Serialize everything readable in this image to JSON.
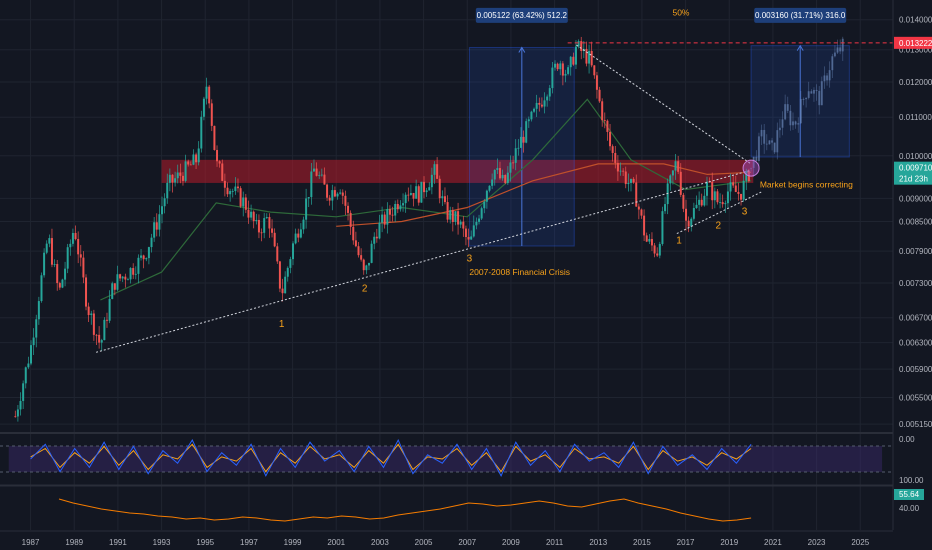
{
  "chart_data": {
    "type": "candlestick",
    "price_axis": {
      "ticks": [
        "0.014000",
        "0.013000",
        "0.012000",
        "0.011000",
        "0.010000",
        "0.009000",
        "0.008500",
        "0.007900",
        "0.007300",
        "0.006700",
        "0.006300",
        "0.005900",
        "0.005500",
        "0.005150"
      ],
      "current_price_label": "0.009710",
      "countdown_label": "21d 23h",
      "target_label": "0.013222",
      "scale": "log",
      "range": [
        0.00505,
        0.0147
      ]
    },
    "time_axis": {
      "ticks": [
        "1987",
        "1989",
        "1991",
        "1993",
        "1995",
        "1997",
        "1999",
        "2001",
        "2003",
        "2005",
        "2007",
        "2009",
        "2011",
        "2013",
        "2015",
        "2017",
        "2019",
        "2021",
        "2023",
        "2025"
      ],
      "range": [
        1985.6,
        2026.5
      ]
    },
    "price_series": [
      {
        "x": 1986.3,
        "y": 0.00525
      },
      {
        "x": 1987.0,
        "y": 0.0062
      },
      {
        "x": 1987.8,
        "y": 0.0082
      },
      {
        "x": 1988.3,
        "y": 0.0071
      },
      {
        "x": 1989.0,
        "y": 0.0084
      },
      {
        "x": 1989.6,
        "y": 0.0069
      },
      {
        "x": 1990.2,
        "y": 0.00625
      },
      {
        "x": 1990.8,
        "y": 0.0073
      },
      {
        "x": 1991.5,
        "y": 0.0075
      },
      {
        "x": 1992.2,
        "y": 0.0078
      },
      {
        "x": 1992.8,
        "y": 0.0085
      },
      {
        "x": 1993.3,
        "y": 0.0093
      },
      {
        "x": 1994.0,
        "y": 0.0096
      },
      {
        "x": 1994.6,
        "y": 0.0099
      },
      {
        "x": 1995.1,
        "y": 0.0121
      },
      {
        "x": 1995.5,
        "y": 0.0098
      },
      {
        "x": 1996.0,
        "y": 0.0093
      },
      {
        "x": 1996.8,
        "y": 0.0089
      },
      {
        "x": 1997.4,
        "y": 0.0083
      },
      {
        "x": 1997.9,
        "y": 0.0086
      },
      {
        "x": 1998.5,
        "y": 0.0071
      },
      {
        "x": 1999.0,
        "y": 0.008
      },
      {
        "x": 1999.5,
        "y": 0.0087
      },
      {
        "x": 2000.0,
        "y": 0.0097
      },
      {
        "x": 2000.6,
        "y": 0.0091
      },
      {
        "x": 2001.2,
        "y": 0.0093
      },
      {
        "x": 2001.6,
        "y": 0.0085
      },
      {
        "x": 2002.3,
        "y": 0.0074
      },
      {
        "x": 2002.8,
        "y": 0.0083
      },
      {
        "x": 2003.5,
        "y": 0.0087
      },
      {
        "x": 2004.2,
        "y": 0.0092
      },
      {
        "x": 2004.8,
        "y": 0.0091
      },
      {
        "x": 2005.5,
        "y": 0.0096
      },
      {
        "x": 2006.0,
        "y": 0.0087
      },
      {
        "x": 2006.6,
        "y": 0.0085
      },
      {
        "x": 2007.1,
        "y": 0.008
      },
      {
        "x": 2007.6,
        "y": 0.0088
      },
      {
        "x": 2008.2,
        "y": 0.0097
      },
      {
        "x": 2008.7,
        "y": 0.0093
      },
      {
        "x": 2009.3,
        "y": 0.0102
      },
      {
        "x": 2009.9,
        "y": 0.0109
      },
      {
        "x": 2010.5,
        "y": 0.0116
      },
      {
        "x": 2011.2,
        "y": 0.0127
      },
      {
        "x": 2011.6,
        "y": 0.0122
      },
      {
        "x": 2012.0,
        "y": 0.0131
      },
      {
        "x": 2012.6,
        "y": 0.0127
      },
      {
        "x": 2013.1,
        "y": 0.0113
      },
      {
        "x": 2013.6,
        "y": 0.0101
      },
      {
        "x": 2014.1,
        "y": 0.0096
      },
      {
        "x": 2014.7,
        "y": 0.0091
      },
      {
        "x": 2015.2,
        "y": 0.0081
      },
      {
        "x": 2015.7,
        "y": 0.0079
      },
      {
        "x": 2016.1,
        "y": 0.009
      },
      {
        "x": 2016.6,
        "y": 0.0099
      },
      {
        "x": 2017.0,
        "y": 0.0085
      },
      {
        "x": 2017.5,
        "y": 0.0088
      },
      {
        "x": 2018.0,
        "y": 0.0093
      },
      {
        "x": 2018.5,
        "y": 0.0089
      },
      {
        "x": 2019.0,
        "y": 0.0092
      },
      {
        "x": 2019.5,
        "y": 0.0091
      },
      {
        "x": 2020.0,
        "y": 0.0097
      }
    ],
    "projection_series": [
      {
        "x": 2020.0,
        "y": 0.0097
      },
      {
        "x": 2020.5,
        "y": 0.0105
      },
      {
        "x": 2021.0,
        "y": 0.0101
      },
      {
        "x": 2021.5,
        "y": 0.0112
      },
      {
        "x": 2022.0,
        "y": 0.0108
      },
      {
        "x": 2022.6,
        "y": 0.0119
      },
      {
        "x": 2023.1,
        "y": 0.0115
      },
      {
        "x": 2023.7,
        "y": 0.0127
      },
      {
        "x": 2024.3,
        "y": 0.0132
      }
    ],
    "moving_averages": [
      {
        "color": "#2e6a3a",
        "points": [
          {
            "x": 1990.2,
            "y": 0.007
          },
          {
            "x": 1993.0,
            "y": 0.0075
          },
          {
            "x": 1995.5,
            "y": 0.0089
          },
          {
            "x": 1998.0,
            "y": 0.0087
          },
          {
            "x": 2001.0,
            "y": 0.0086
          },
          {
            "x": 2004.0,
            "y": 0.0088
          },
          {
            "x": 2007.0,
            "y": 0.0086
          },
          {
            "x": 2010.0,
            "y": 0.0099
          },
          {
            "x": 2012.5,
            "y": 0.0115
          },
          {
            "x": 2014.5,
            "y": 0.0099
          },
          {
            "x": 2017.0,
            "y": 0.0092
          },
          {
            "x": 2020.0,
            "y": 0.0094
          }
        ]
      },
      {
        "color": "#c0502a",
        "points": [
          {
            "x": 2001.0,
            "y": 0.0084
          },
          {
            "x": 2004.0,
            "y": 0.0085
          },
          {
            "x": 2007.0,
            "y": 0.0088
          },
          {
            "x": 2010.0,
            "y": 0.0094
          },
          {
            "x": 2013.0,
            "y": 0.0098
          },
          {
            "x": 2016.0,
            "y": 0.0098
          },
          {
            "x": 2018.0,
            "y": 0.00955
          },
          {
            "x": 2020.0,
            "y": 0.0096
          }
        ]
      }
    ],
    "resistance_zone": {
      "x0": 1993.0,
      "x1": 2020.1,
      "y_low": 0.00935,
      "y_high": 0.0099
    },
    "target_line": {
      "y": 0.013222,
      "x0": 2011.6
    },
    "trend_lines": [
      {
        "x0": 1990.0,
        "y0": 0.00615,
        "x1": 2020.0,
        "y1": 0.00965
      },
      {
        "x0": 2012.0,
        "y0": 0.01315,
        "x1": 2020.0,
        "y1": 0.0098
      },
      {
        "x0": 2016.6,
        "y0": 0.00825,
        "x1": 2020.5,
        "y1": 0.00915
      }
    ],
    "measure_boxes": [
      {
        "label": "0.005122 (63.42%) 512.2",
        "x0": 2007.1,
        "x1": 2011.9,
        "y0": 0.008,
        "y1": 0.01307,
        "label_y": 0.0141
      },
      {
        "label": "0.003160 (31.71%) 316.0",
        "x0": 2020.0,
        "x1": 2024.5,
        "y0": 0.00997,
        "y1": 0.01313,
        "label_y": 0.0141
      }
    ],
    "annotations": [
      {
        "text": "50%",
        "x": 2016.4,
        "y": 0.01415
      },
      {
        "text": "Market begins correcting",
        "x": 2020.4,
        "y": 0.00925
      },
      {
        "text": "2007-2008 Financial Crisis",
        "x": 2007.1,
        "y": 0.00745
      }
    ],
    "wave_labels": [
      {
        "text": "1",
        "x": 1998.5,
        "y": 0.00655
      },
      {
        "text": "2",
        "x": 2002.3,
        "y": 0.00715
      },
      {
        "text": "3",
        "x": 2007.1,
        "y": 0.0077
      },
      {
        "text": "1",
        "x": 2016.7,
        "y": 0.00805
      },
      {
        "text": "2",
        "x": 2018.5,
        "y": 0.00835
      },
      {
        "text": "3",
        "x": 2019.7,
        "y": 0.00865
      }
    ],
    "stochastic_panel": {
      "axis_ticks": [
        "0.00",
        "100.00"
      ],
      "k": [
        50,
        85,
        20,
        75,
        30,
        90,
        25,
        80,
        15,
        70,
        40,
        95,
        20,
        65,
        35,
        85,
        10,
        75,
        30,
        90,
        45,
        70,
        20,
        80,
        30,
        95,
        15,
        60,
        40,
        85,
        25,
        75,
        10,
        90,
        35,
        70,
        20,
        85,
        45,
        65,
        30,
        90,
        15,
        80,
        35,
        60,
        25,
        75,
        40,
        85
      ],
      "d": [
        55,
        75,
        30,
        65,
        40,
        80,
        35,
        70,
        25,
        60,
        50,
        85,
        30,
        55,
        45,
        75,
        20,
        65,
        40,
        80,
        50,
        60,
        30,
        70,
        40,
        85,
        25,
        55,
        50,
        75,
        35,
        65,
        20,
        80,
        45,
        60,
        30,
        75,
        50,
        55,
        40,
        80,
        25,
        70,
        45,
        55,
        35,
        65,
        50,
        75
      ]
    },
    "rsi_panel": {
      "axis_ticks": [
        "40.00"
      ],
      "current_label": "55.64",
      "values": [
        62,
        58,
        55,
        52,
        50,
        48,
        47,
        45,
        44,
        42,
        43,
        41,
        42,
        44,
        43,
        41,
        40,
        42,
        44,
        43,
        45,
        44,
        42,
        43,
        46,
        48,
        50,
        52,
        55,
        58,
        57,
        55,
        56,
        58,
        60,
        58,
        55,
        54,
        57,
        60,
        62,
        58,
        55,
        52,
        48,
        45,
        42,
        40,
        41,
        43
      ]
    }
  }
}
